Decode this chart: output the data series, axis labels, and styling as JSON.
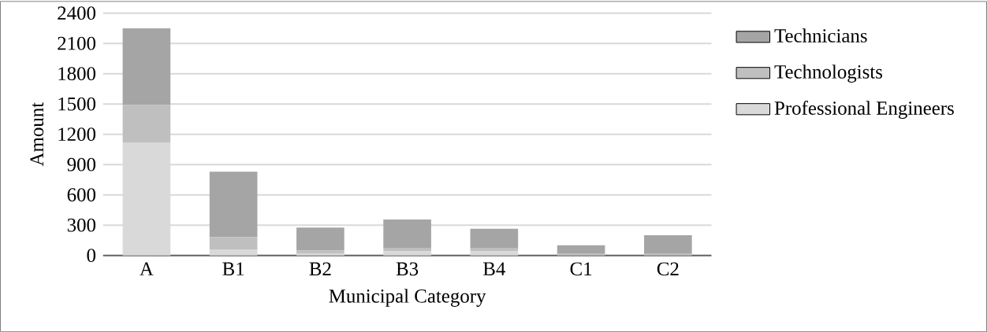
{
  "chart_data": {
    "type": "bar",
    "stacked": true,
    "xlabel": "Municipal Category",
    "ylabel": "Amount",
    "categories": [
      "A",
      "B1",
      "B2",
      "B3",
      "B4",
      "C1",
      "C2"
    ],
    "series": [
      {
        "name": "Professional Engineers",
        "color": "#d9d9d9",
        "values": [
          1120,
          60,
          20,
          40,
          40,
          null,
          null
        ]
      },
      {
        "name": "Technologists",
        "color": "#bfbfbf",
        "values": [
          370,
          120,
          30,
          30,
          30,
          20,
          15
        ]
      },
      {
        "name": "Technicians",
        "color": "#a5a5a5",
        "values": [
          760,
          650,
          225,
          285,
          195,
          80,
          185
        ]
      }
    ],
    "ylim": [
      0,
      2400
    ],
    "yticks": [
      0,
      300,
      600,
      900,
      1200,
      1500,
      1800,
      2100,
      2400
    ],
    "grid": "y",
    "legend": "right"
  }
}
